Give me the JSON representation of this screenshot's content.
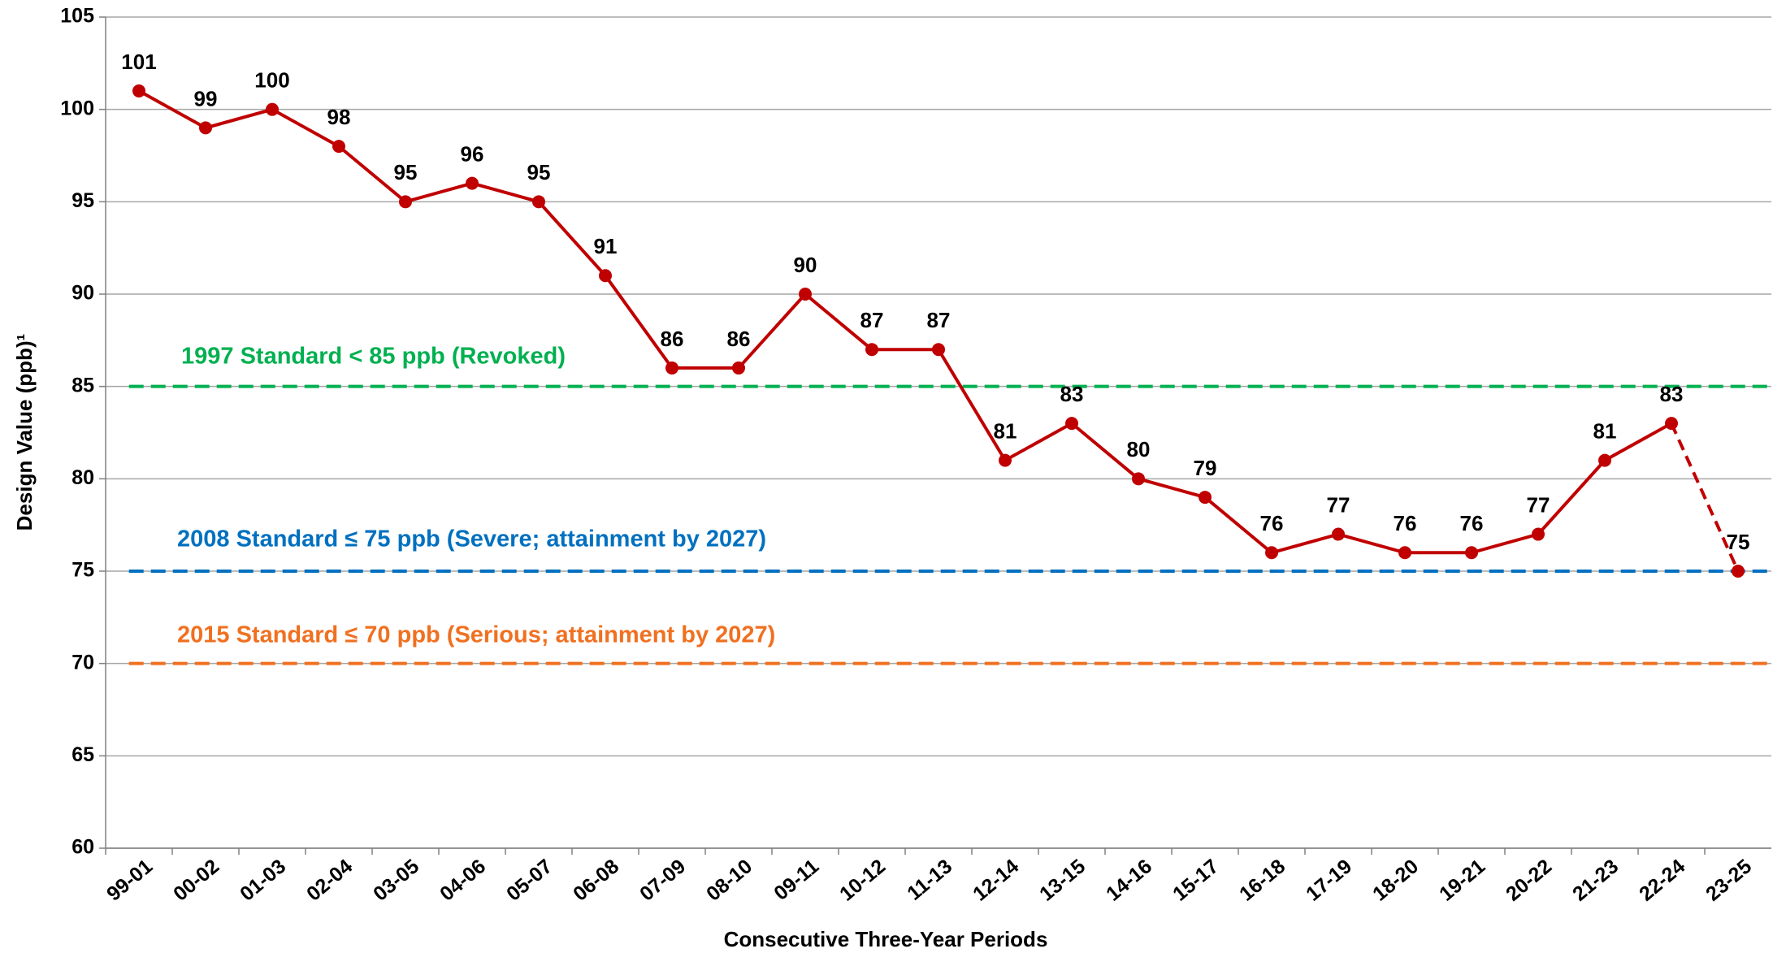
{
  "chart_data": {
    "type": "line",
    "x_label": "Consecutive Three-Year Periods",
    "y_label": "Design Value (ppb)¹",
    "categories": [
      "99-01",
      "00-02",
      "01-03",
      "02-04",
      "03-05",
      "04-06",
      "05-07",
      "06-08",
      "07-09",
      "08-10",
      "09-11",
      "10-12",
      "11-13",
      "12-14",
      "13-15",
      "14-16",
      "15-17",
      "16-18",
      "17-19",
      "18-20",
      "19-21",
      "20-22",
      "21-23",
      "22-24",
      "23-25"
    ],
    "series": [
      {
        "color": "#c00000",
        "values": [
          101,
          99,
          100,
          98,
          95,
          96,
          95,
          91,
          86,
          86,
          90,
          87,
          87,
          81,
          83,
          80,
          79,
          76,
          77,
          76,
          76,
          77,
          81,
          83,
          75
        ]
      }
    ],
    "dashed_last_segment": true,
    "reference_lines": [
      {
        "value": 85,
        "label": "1997 Standard < 85 ppb (Revoked)",
        "color": "#00b050"
      },
      {
        "value": 75,
        "label": "2008 Standard ≤ 75 ppb (Severe; attainment by 2027)",
        "color": "#0070c0"
      },
      {
        "value": 70,
        "label": "2015 Standard ≤ 70 ppb (Serious; attainment by 2027)",
        "color": "#f07020"
      }
    ],
    "ylim": [
      60,
      105
    ],
    "yticks": [
      60,
      65,
      70,
      75,
      80,
      85,
      90,
      95,
      100,
      105
    ],
    "grid": true
  }
}
